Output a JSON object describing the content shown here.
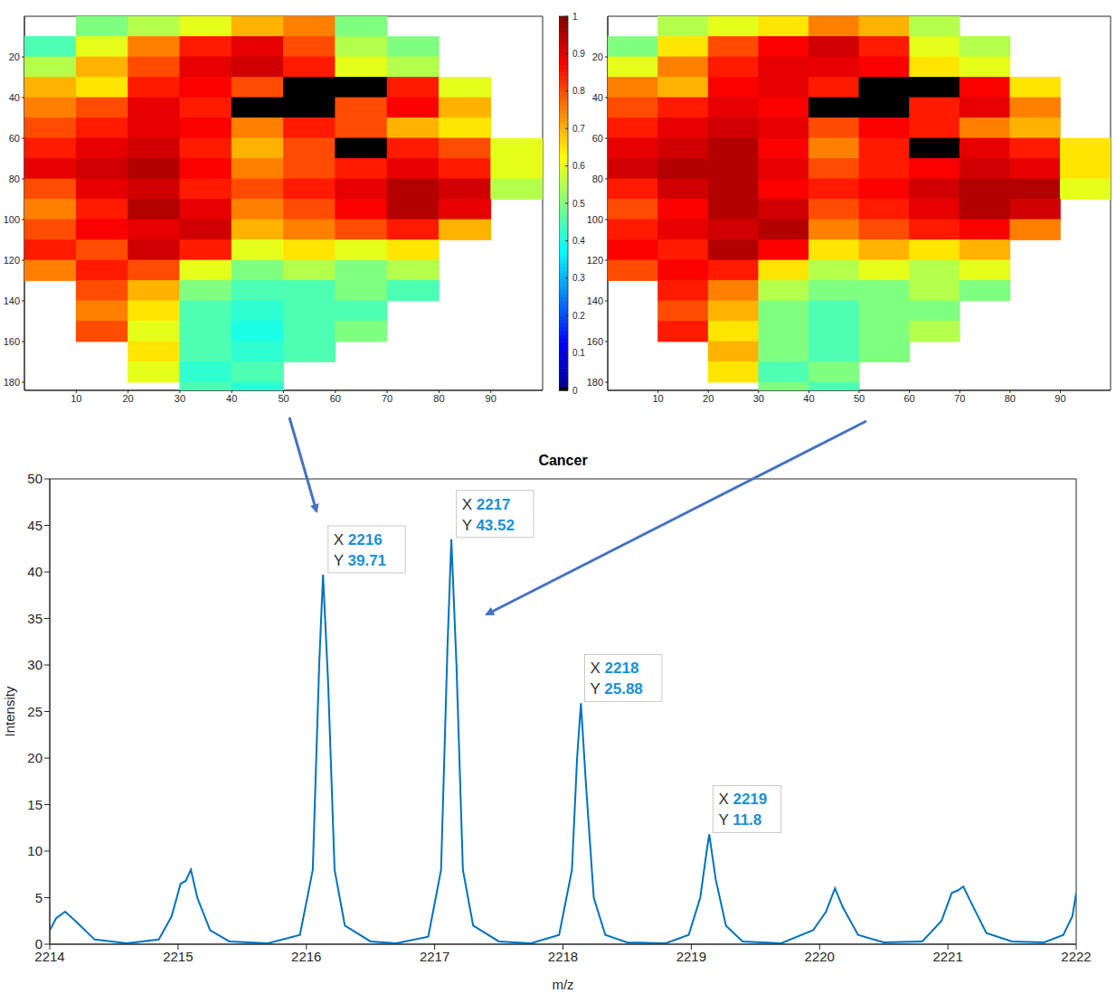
{
  "chart_data": [
    {
      "type": "heatmap",
      "x": [
        5,
        15,
        25,
        35,
        45,
        55,
        65,
        75,
        85,
        95
      ],
      "y": [
        5,
        15,
        25,
        35,
        45,
        55,
        65,
        75,
        85,
        95,
        105,
        115,
        125,
        135,
        145,
        155,
        165,
        175,
        185
      ],
      "cells": [
        [
          null,
          0.5,
          0.55,
          0.6,
          0.7,
          0.75,
          0.5,
          null,
          null,
          null
        ],
        [
          0.45,
          0.6,
          0.75,
          0.85,
          0.9,
          0.8,
          0.55,
          0.5,
          null,
          null
        ],
        [
          0.55,
          0.7,
          0.8,
          0.9,
          0.92,
          0.85,
          0.6,
          0.55,
          null,
          null
        ],
        [
          0.7,
          0.65,
          0.85,
          0.88,
          0.8,
          0,
          0,
          0.85,
          0.6,
          null
        ],
        [
          0.75,
          0.8,
          0.9,
          0.85,
          0,
          0,
          0.8,
          0.88,
          0.7,
          null
        ],
        [
          0.8,
          0.85,
          0.9,
          0.88,
          0.75,
          0.85,
          0.8,
          0.7,
          0.65,
          null
        ],
        [
          0.85,
          0.9,
          0.92,
          0.85,
          0.7,
          0.8,
          0,
          0.85,
          0.8,
          0.6
        ],
        [
          0.9,
          0.92,
          0.95,
          0.88,
          0.75,
          0.8,
          0.85,
          0.9,
          0.85,
          0.6
        ],
        [
          0.8,
          0.9,
          0.92,
          0.85,
          0.8,
          0.85,
          0.9,
          0.95,
          0.92,
          0.55
        ],
        [
          0.75,
          0.85,
          0.95,
          0.9,
          0.75,
          0.8,
          0.88,
          0.95,
          0.9,
          null
        ],
        [
          0.8,
          0.88,
          0.9,
          0.92,
          0.7,
          0.75,
          0.8,
          0.85,
          0.7,
          null
        ],
        [
          0.85,
          0.8,
          0.92,
          0.85,
          0.6,
          0.65,
          0.6,
          0.65,
          null,
          null
        ],
        [
          0.75,
          0.85,
          0.8,
          0.6,
          0.5,
          0.55,
          0.5,
          0.55,
          null,
          null
        ],
        [
          null,
          0.8,
          0.7,
          0.5,
          0.45,
          0.45,
          0.5,
          0.45,
          null,
          null
        ],
        [
          null,
          0.75,
          0.65,
          0.45,
          0.42,
          0.45,
          0.45,
          null,
          null,
          null
        ],
        [
          null,
          0.8,
          0.6,
          0.45,
          0.4,
          0.45,
          0.5,
          null,
          null,
          null
        ],
        [
          null,
          null,
          0.65,
          0.45,
          0.42,
          0.45,
          null,
          null,
          null,
          null
        ],
        [
          null,
          null,
          0.6,
          0.42,
          0.45,
          null,
          null,
          null,
          null,
          null
        ],
        [
          null,
          null,
          null,
          0.45,
          0.42,
          null,
          null,
          null,
          null,
          null
        ]
      ],
      "xlim": [
        0,
        100
      ],
      "xticks": [
        10,
        20,
        30,
        40,
        50,
        60,
        70,
        80,
        90
      ],
      "ylim": [
        0,
        184
      ],
      "yticks": [
        20,
        40,
        60,
        80,
        100,
        120,
        140,
        160,
        180
      ],
      "colorbar_range": [
        0,
        1
      ],
      "colorbar_ticks": [
        0,
        0.1,
        0.2,
        0.3,
        0.4,
        0.5,
        0.6,
        0.7,
        0.8,
        0.9,
        1
      ]
    },
    {
      "type": "heatmap",
      "x": [
        5,
        15,
        25,
        35,
        45,
        55,
        65,
        75,
        85,
        95
      ],
      "y": [
        5,
        15,
        25,
        35,
        45,
        55,
        65,
        75,
        85,
        95,
        105,
        115,
        125,
        135,
        145,
        155,
        165,
        175,
        185
      ],
      "cells": [
        [
          null,
          0.55,
          0.6,
          0.65,
          0.75,
          0.7,
          0.55,
          null,
          null,
          null
        ],
        [
          0.5,
          0.65,
          0.8,
          0.88,
          0.92,
          0.85,
          0.6,
          0.55,
          null,
          null
        ],
        [
          0.6,
          0.75,
          0.85,
          0.9,
          0.9,
          0.88,
          0.65,
          0.6,
          null,
          null
        ],
        [
          0.75,
          0.7,
          0.88,
          0.9,
          0.85,
          0,
          0,
          0.88,
          0.65,
          null
        ],
        [
          0.8,
          0.85,
          0.9,
          0.88,
          0,
          0,
          0.85,
          0.9,
          0.75,
          null
        ],
        [
          0.85,
          0.9,
          0.92,
          0.9,
          0.8,
          0.88,
          0.85,
          0.75,
          0.7,
          null
        ],
        [
          0.9,
          0.92,
          0.95,
          0.88,
          0.75,
          0.85,
          0,
          0.9,
          0.85,
          0.65
        ],
        [
          0.92,
          0.95,
          0.95,
          0.9,
          0.8,
          0.85,
          0.88,
          0.92,
          0.9,
          0.65
        ],
        [
          0.85,
          0.92,
          0.95,
          0.88,
          0.85,
          0.88,
          0.92,
          0.95,
          0.95,
          0.6
        ],
        [
          0.8,
          0.88,
          0.95,
          0.92,
          0.8,
          0.85,
          0.9,
          0.95,
          0.92,
          null
        ],
        [
          0.85,
          0.9,
          0.92,
          0.95,
          0.75,
          0.8,
          0.85,
          0.88,
          0.75,
          null
        ],
        [
          0.88,
          0.85,
          0.95,
          0.88,
          0.65,
          0.7,
          0.65,
          0.7,
          null,
          null
        ],
        [
          0.8,
          0.88,
          0.85,
          0.65,
          0.55,
          0.6,
          0.55,
          0.6,
          null,
          null
        ],
        [
          null,
          0.85,
          0.75,
          0.55,
          0.5,
          0.5,
          0.55,
          0.5,
          null,
          null
        ],
        [
          null,
          0.8,
          0.7,
          0.5,
          0.45,
          0.5,
          0.5,
          null,
          null,
          null
        ],
        [
          null,
          0.85,
          0.65,
          0.5,
          0.45,
          0.5,
          0.55,
          null,
          null,
          null
        ],
        [
          null,
          null,
          0.7,
          0.5,
          0.45,
          0.5,
          null,
          null,
          null,
          null
        ],
        [
          null,
          null,
          0.65,
          0.45,
          0.5,
          null,
          null,
          null,
          null,
          null
        ],
        [
          null,
          null,
          null,
          0.5,
          0.45,
          null,
          null,
          null,
          null,
          null
        ]
      ],
      "xlim": [
        0,
        100
      ],
      "xticks": [
        10,
        20,
        30,
        40,
        50,
        60,
        70,
        80,
        90
      ],
      "ylim": [
        0,
        184
      ],
      "yticks": [
        20,
        40,
        60,
        80,
        100,
        120,
        140,
        160,
        180
      ]
    },
    {
      "type": "line",
      "title": "Cancer",
      "x_label": "m/z",
      "y_label": "Intensity",
      "color": "#0072bd",
      "grid": false,
      "x": [
        2214,
        2214.05,
        2214.12,
        2214.2,
        2214.35,
        2214.6,
        2214.85,
        2214.95,
        2215.02,
        2215.06,
        2215.1,
        2215.15,
        2215.25,
        2215.4,
        2215.7,
        2215.95,
        2216.05,
        2216.1,
        2216.13,
        2216.17,
        2216.22,
        2216.3,
        2216.5,
        2216.7,
        2216.95,
        2217.05,
        2217.1,
        2217.13,
        2217.17,
        2217.22,
        2217.3,
        2217.5,
        2217.75,
        2217.97,
        2218.07,
        2218.11,
        2218.14,
        2218.18,
        2218.24,
        2218.33,
        2218.5,
        2218.8,
        2218.98,
        2219.07,
        2219.12,
        2219.14,
        2219.19,
        2219.27,
        2219.4,
        2219.7,
        2219.95,
        2220.05,
        2220.12,
        2220.18,
        2220.3,
        2220.5,
        2220.8,
        2220.95,
        2221.03,
        2221.08,
        2221.12,
        2221.18,
        2221.3,
        2221.5,
        2221.75,
        2221.9,
        2221.97,
        2222
      ],
      "values": [
        1.5,
        2.8,
        3.5,
        2.5,
        0.5,
        0.1,
        0.5,
        3,
        6.5,
        6.8,
        8,
        5,
        1.5,
        0.3,
        0.1,
        1,
        8,
        30,
        39.71,
        28,
        8,
        2,
        0.3,
        0.1,
        0.8,
        8,
        32,
        43.52,
        30,
        8,
        2,
        0.3,
        0.1,
        1,
        8,
        20,
        25.88,
        17,
        5,
        1,
        0.2,
        0.1,
        1,
        5,
        10,
        11.8,
        7,
        2,
        0.3,
        0.1,
        1.5,
        3.5,
        6,
        4,
        1,
        0.2,
        0.3,
        2.5,
        5.5,
        5.8,
        6.2,
        4.5,
        1.2,
        0.3,
        0.2,
        1,
        3,
        5.5
      ],
      "xlim": [
        2214,
        2222
      ],
      "xticks": [
        2214,
        2215,
        2216,
        2217,
        2218,
        2219,
        2220,
        2221,
        2222
      ],
      "ylim": [
        0,
        50
      ],
      "yticks": [
        0,
        5,
        10,
        15,
        20,
        25,
        30,
        35,
        40,
        45,
        50
      ],
      "annotations": [
        {
          "x": 2216,
          "y": 39.71,
          "x_text": "X",
          "y_text": "Y"
        },
        {
          "x": 2217,
          "y": 43.52,
          "x_text": "X",
          "y_text": "Y"
        },
        {
          "x": 2218,
          "y": 25.88,
          "x_text": "X",
          "y_text": "Y"
        },
        {
          "x": 2219,
          "y": 11.8,
          "x_text": "X",
          "y_text": "Y"
        }
      ]
    }
  ]
}
